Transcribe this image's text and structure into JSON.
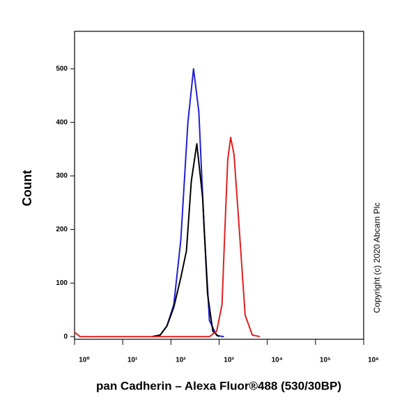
{
  "chart_data": {
    "type": "line",
    "xlabel": "pan Cadherin – Alexa Fluor®488 (530/30BP)",
    "ylabel": "Count",
    "annotation": "Copyright (c) 2020 Abcam Plc",
    "xscale": "log",
    "xlim": [
      1,
      1000000
    ],
    "ylim": [
      -5,
      570
    ],
    "xticks": [
      {
        "value": 1,
        "label": "10⁰"
      },
      {
        "value": 10,
        "label": "10¹"
      },
      {
        "value": 100,
        "label": "10²"
      },
      {
        "value": 1000,
        "label": "10³"
      },
      {
        "value": 10000,
        "label": "10⁴"
      },
      {
        "value": 100000,
        "label": "10⁵"
      },
      {
        "value": 1000000,
        "label": "10⁶"
      }
    ],
    "yticks": [
      0,
      100,
      200,
      300,
      400,
      500
    ],
    "series": [
      {
        "color": "#1f1fd6",
        "x": [
          40,
          60,
          83,
          115,
          160,
          225,
          295,
          380,
          490,
          630,
          890,
          1260
        ],
        "values": [
          0,
          3,
          20,
          60,
          180,
          400,
          500,
          420,
          200,
          30,
          2,
          0
        ]
      },
      {
        "color": "#000000",
        "x": [
          40,
          60,
          83,
          115,
          160,
          210,
          265,
          345,
          455,
          575,
          740,
          1000
        ],
        "values": [
          0,
          3,
          20,
          55,
          110,
          160,
          290,
          360,
          260,
          80,
          10,
          0
        ]
      },
      {
        "color": "#e02020",
        "x": [
          1,
          1.3,
          630,
          890,
          1150,
          1320,
          1510,
          1740,
          2040,
          2630,
          3470,
          4900,
          7000
        ],
        "values": [
          8,
          0,
          0,
          10,
          60,
          200,
          330,
          372,
          340,
          200,
          40,
          3,
          0
        ]
      }
    ]
  }
}
